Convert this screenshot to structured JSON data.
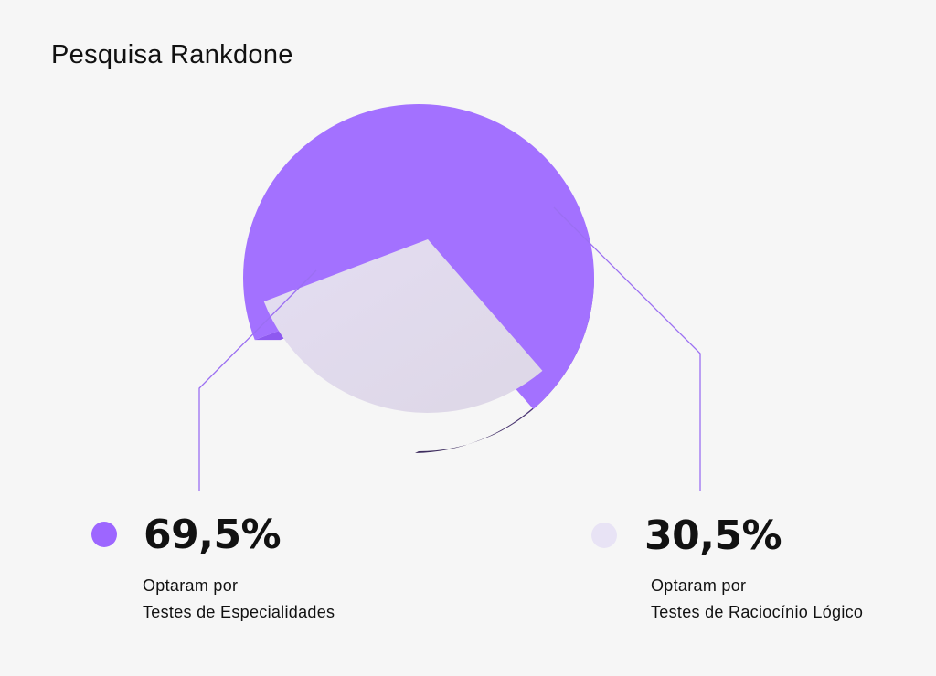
{
  "header": {
    "title": "Pesquisa Rankdone"
  },
  "colors": {
    "primary": "#a371ff",
    "primary_side": "#5b3f8f",
    "secondary": "#e2dbf0",
    "line": "#9b6ff2",
    "background": "#f6f6f6"
  },
  "chart_data": {
    "type": "pie",
    "title": "Pesquisa Rankdone",
    "slices": [
      {
        "value": 69.5,
        "label": "69,5%",
        "desc_line1": "Optaram por",
        "desc_line2": "Testes de Especialidades",
        "color": "#a371ff"
      },
      {
        "value": 30.5,
        "label": "30,5%",
        "desc_line1": "Optaram por",
        "desc_line2": "Testes de Raciocínio Lógico",
        "color": "#e2dbf0"
      }
    ]
  }
}
